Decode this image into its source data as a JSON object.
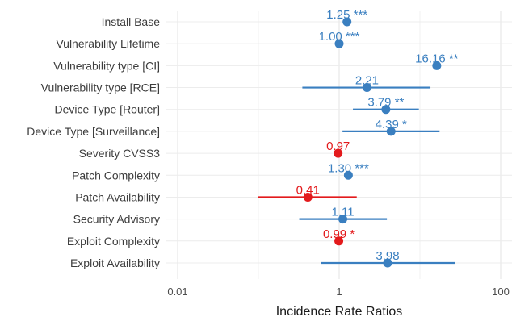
{
  "chart_data": {
    "type": "scatter",
    "scale": "log",
    "xlabel": "Incidence Rate Ratios",
    "xlim": [
      0.01,
      130
    ],
    "xticks": [
      {
        "value": 0.01,
        "label": "0.01"
      },
      {
        "value": 1,
        "label": "1"
      },
      {
        "value": 100,
        "label": "100"
      }
    ],
    "colors": {
      "positive": "#3a7fc0",
      "negative": "#e31a1c"
    },
    "grid": true,
    "rows": [
      {
        "term": "Install Base",
        "estimate": 1.25,
        "label": "1.25 ***",
        "ci_low": null,
        "ci_high": null,
        "direction": "positive"
      },
      {
        "term": "Vulnerability Lifetime",
        "estimate": 1.0,
        "label": "1.00 ***",
        "ci_low": null,
        "ci_high": null,
        "direction": "positive"
      },
      {
        "term": "Vulnerability type [CI]",
        "estimate": 16.16,
        "label": "16.16 **",
        "ci_low": null,
        "ci_high": null,
        "direction": "positive"
      },
      {
        "term": "Vulnerability type [RCE]",
        "estimate": 2.21,
        "label": "2.21",
        "ci_low": 0.35,
        "ci_high": 13.5,
        "direction": "positive"
      },
      {
        "term": "Device Type [Router]",
        "estimate": 3.79,
        "label": "3.79 **",
        "ci_low": 1.48,
        "ci_high": 9.7,
        "direction": "positive"
      },
      {
        "term": "Device Type [Surveillance]",
        "estimate": 4.39,
        "label": "4.39 *",
        "ci_low": 1.1,
        "ci_high": 17.5,
        "direction": "positive"
      },
      {
        "term": "Severity CVSS3",
        "estimate": 0.97,
        "label": "0.97",
        "ci_low": null,
        "ci_high": null,
        "direction": "negative"
      },
      {
        "term": "Patch Complexity",
        "estimate": 1.3,
        "label": "1.30 ***",
        "ci_low": null,
        "ci_high": null,
        "direction": "positive"
      },
      {
        "term": "Patch Availability",
        "estimate": 0.41,
        "label": "0.41",
        "ci_low": 0.1,
        "ci_high": 1.65,
        "direction": "negative"
      },
      {
        "term": "Security Advisory",
        "estimate": 1.11,
        "label": "1.11",
        "ci_low": 0.32,
        "ci_high": 3.9,
        "direction": "positive"
      },
      {
        "term": "Exploit Complexity",
        "estimate": 0.99,
        "label": "0.99 *",
        "ci_low": null,
        "ci_high": null,
        "direction": "negative"
      },
      {
        "term": "Exploit Availability",
        "estimate": 3.98,
        "label": "3.98",
        "ci_low": 0.6,
        "ci_high": 27.0,
        "direction": "positive"
      }
    ]
  }
}
